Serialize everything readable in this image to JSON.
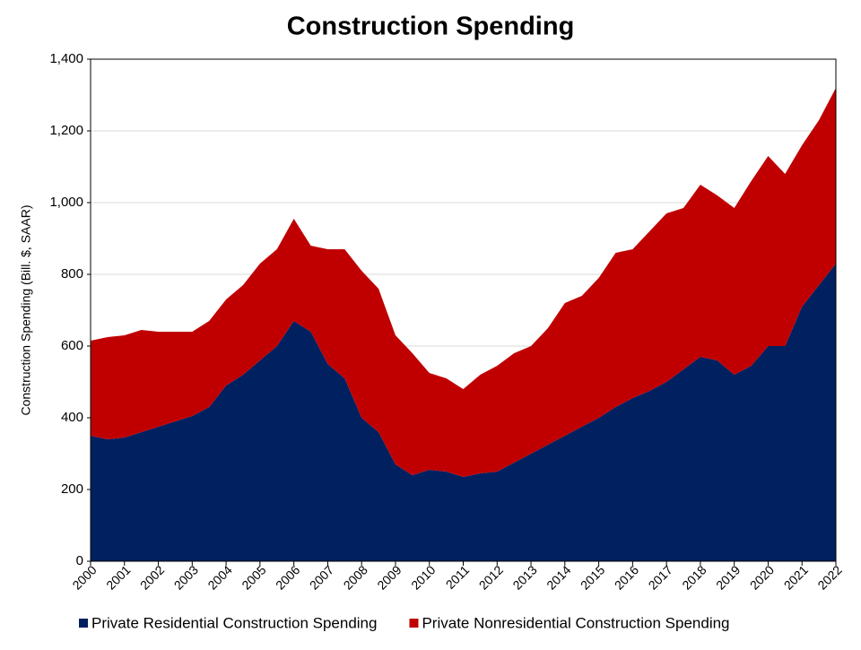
{
  "chart_data": {
    "type": "stacked_area",
    "title": "Construction Spending",
    "y_label": "Construction Spending (Bill. $, SAAR)",
    "x": [
      2000,
      2000.5,
      2001,
      2001.5,
      2002,
      2002.5,
      2003,
      2003.5,
      2004,
      2004.5,
      2005,
      2005.5,
      2006,
      2006.5,
      2007,
      2007.5,
      2008,
      2008.5,
      2009,
      2009.5,
      2010,
      2010.5,
      2011,
      2011.5,
      2012,
      2012.5,
      2013,
      2013.5,
      2014,
      2014.5,
      2015,
      2015.5,
      2016,
      2016.5,
      2017,
      2017.5,
      2018,
      2018.5,
      2019,
      2019.5,
      2020,
      2020.5,
      2021,
      2021.5,
      2022
    ],
    "series": [
      {
        "name": "Private Residential Construction Spending",
        "color": "#002060",
        "values": [
          350,
          340,
          345,
          360,
          375,
          390,
          405,
          430,
          490,
          520,
          560,
          600,
          670,
          640,
          550,
          510,
          400,
          360,
          270,
          240,
          255,
          250,
          235,
          245,
          250,
          275,
          300,
          325,
          350,
          375,
          400,
          430,
          455,
          475,
          500,
          535,
          570,
          560,
          520,
          545,
          600,
          600,
          710,
          770,
          830
        ]
      },
      {
        "name": "Private Nonresidential Construction Spending",
        "color": "#c00000",
        "values": [
          265,
          285,
          285,
          285,
          265,
          250,
          235,
          240,
          240,
          250,
          270,
          270,
          285,
          240,
          320,
          360,
          410,
          400,
          360,
          340,
          270,
          260,
          245,
          275,
          295,
          305,
          300,
          325,
          370,
          365,
          390,
          430,
          415,
          445,
          470,
          450,
          480,
          460,
          465,
          515,
          530,
          480,
          450,
          460,
          490
        ]
      }
    ],
    "xlim": [
      2000,
      2022
    ],
    "xticks": [
      2000,
      2001,
      2002,
      2003,
      2004,
      2005,
      2006,
      2007,
      2008,
      2009,
      2010,
      2011,
      2012,
      2013,
      2014,
      2015,
      2016,
      2017,
      2018,
      2019,
      2020,
      2021,
      2022
    ],
    "ylim": [
      0,
      1400
    ],
    "yticks": [
      0,
      200,
      400,
      600,
      800,
      {
        "value": 1000,
        "label": "1,000"
      },
      {
        "value": 1200,
        "label": "1,200"
      },
      {
        "value": 1400,
        "label": "1,400"
      }
    ],
    "grid": true,
    "legend": "bottom"
  }
}
